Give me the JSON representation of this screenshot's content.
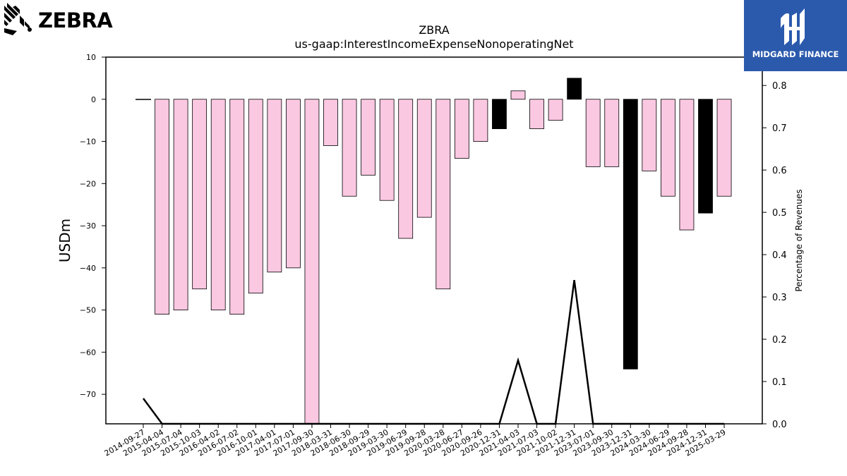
{
  "brand": {
    "name": "ZEBRA",
    "watermark": "MIDGARD FINANCE",
    "watermark_bg": "#2b5aad"
  },
  "chart_data": {
    "type": "bar",
    "title": "ZBRA",
    "subtitle": "us-gaap:InterestIncomeExpenseNonoperatingNet",
    "ylabel": "USDm",
    "y2label": "Percentage of Revenues",
    "ylim": [
      -77,
      10
    ],
    "y2lim": [
      0,
      0.867
    ],
    "yticks": [
      10,
      0,
      -10,
      -20,
      -30,
      -40,
      -50,
      -60,
      -70
    ],
    "y2ticks": [
      0.0,
      0.1,
      0.2,
      0.3,
      0.4,
      0.5,
      0.6,
      0.7,
      0.8
    ],
    "colors": {
      "negative": "#fbc8e2",
      "highlight": "#000000"
    },
    "categories": [
      "2014-09-27",
      "2015-04-04",
      "2015-07-04",
      "2015-10-03",
      "2016-04-02",
      "2016-07-02",
      "2016-10-01",
      "2017-04-01",
      "2017-07-01",
      "2017-09-30",
      "2018-03-31",
      "2018-06-30",
      "2018-09-29",
      "2019-03-30",
      "2019-06-29",
      "2019-09-28",
      "2020-03-28",
      "2020-06-27",
      "2020-09-26",
      "2020-12-31",
      "2021-04-03",
      "2021-07-03",
      "2021-10-02",
      "2021-12-31",
      "2023-07-01",
      "2023-09-30",
      "2023-12-31",
      "2024-03-30",
      "2024-06-29",
      "2024-09-28",
      "2024-12-31",
      "2025-03-29"
    ],
    "values": [
      0,
      -51,
      -50,
      -45,
      -50,
      -51,
      -46,
      -41,
      -40,
      -77,
      -11,
      -23,
      -18,
      -24,
      -33,
      -28,
      -45,
      -14,
      -10,
      -7,
      2,
      -7,
      -5,
      5,
      -16,
      -16,
      -64,
      -17,
      -23,
      -31,
      -27,
      -23
    ],
    "highlighted": [
      false,
      false,
      false,
      false,
      false,
      false,
      false,
      false,
      false,
      false,
      false,
      false,
      false,
      false,
      false,
      false,
      false,
      false,
      false,
      true,
      false,
      false,
      false,
      true,
      false,
      false,
      true,
      false,
      false,
      false,
      true,
      false
    ],
    "pct_line": [
      0.06,
      0,
      0,
      0,
      0,
      0,
      0,
      0,
      0,
      0,
      0,
      0,
      0,
      0,
      0,
      0,
      0,
      0,
      0,
      0,
      0.15,
      0,
      0,
      0.34,
      0,
      0,
      0,
      0,
      0,
      0,
      0,
      0
    ]
  }
}
